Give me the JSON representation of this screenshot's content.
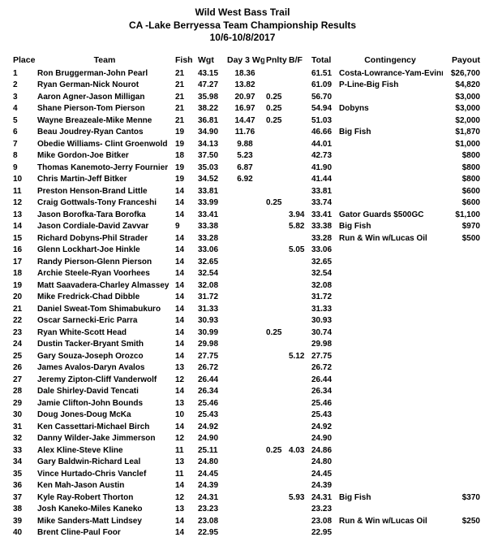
{
  "title_lines": [
    "Wild West Bass Trail",
    "CA -Lake Berryessa Team Championship Results",
    "10/6-10/8/2017"
  ],
  "columns": [
    "Place",
    "Team",
    "Fish",
    "Wgt",
    "Day 3 Wgt",
    "Pnlty",
    "B/F",
    "Total",
    "Contingency",
    "Payout"
  ],
  "rows": [
    {
      "place": "1",
      "team": "Ron Bruggerman-John Pearl",
      "fish": "21",
      "wgt": "43.15",
      "d3": "18.36",
      "pn": "",
      "bf": "",
      "tot": "61.51",
      "cont": "Costa-Lowrance-Yam-Evinrude",
      "pay": "$26,700"
    },
    {
      "place": "2",
      "team": "Ryan German-Nick Nourot",
      "fish": "21",
      "wgt": "47.27",
      "d3": "13.82",
      "pn": "",
      "bf": "",
      "tot": "61.09",
      "cont": "P-Line-Big Fish",
      "pay": "$4,820"
    },
    {
      "place": "3",
      "team": "Aaron Agner-Jason Milligan",
      "fish": "21",
      "wgt": "35.98",
      "d3": "20.97",
      "pn": "0.25",
      "bf": "",
      "tot": "56.70",
      "cont": "",
      "pay": "$3,000"
    },
    {
      "place": "4",
      "team": "Shane Pierson-Tom Pierson",
      "fish": "21",
      "wgt": "38.22",
      "d3": "16.97",
      "pn": "0.25",
      "bf": "",
      "tot": "54.94",
      "cont": "Dobyns",
      "pay": "$3,000"
    },
    {
      "place": "5",
      "team": "Wayne Breazeale-Mike Menne",
      "fish": "21",
      "wgt": "36.81",
      "d3": "14.47",
      "pn": "0.25",
      "bf": "",
      "tot": "51.03",
      "cont": "",
      "pay": "$2,000"
    },
    {
      "place": "6",
      "team": "Beau Joudrey-Ryan Cantos",
      "fish": "19",
      "wgt": "34.90",
      "d3": "11.76",
      "pn": "",
      "bf": "",
      "tot": "46.66",
      "cont": "Big Fish",
      "pay": "$1,870"
    },
    {
      "place": "7",
      "team": "Obedie Williams- Clint Groenwold",
      "fish": "19",
      "wgt": "34.13",
      "d3": "9.88",
      "pn": "",
      "bf": "",
      "tot": "44.01",
      "cont": "",
      "pay": "$1,000"
    },
    {
      "place": "8",
      "team": "Mike Gordon-Joe Bitker",
      "fish": "18",
      "wgt": "37.50",
      "d3": "5.23",
      "pn": "",
      "bf": "",
      "tot": "42.73",
      "cont": "",
      "pay": "$800"
    },
    {
      "place": "9",
      "team": "Thomas Kanemoto-Jerry Fournier",
      "fish": "19",
      "wgt": "35.03",
      "d3": "6.87",
      "pn": "",
      "bf": "",
      "tot": "41.90",
      "cont": "",
      "pay": "$800"
    },
    {
      "place": "10",
      "team": "Chris Martin-Jeff Bitker",
      "fish": "19",
      "wgt": "34.52",
      "d3": "6.92",
      "pn": "",
      "bf": "",
      "tot": "41.44",
      "cont": "",
      "pay": "$800"
    },
    {
      "place": "11",
      "team": "Preston Henson-Brand Little",
      "fish": "14",
      "wgt": "33.81",
      "d3": "",
      "pn": "",
      "bf": "",
      "tot": "33.81",
      "cont": "",
      "pay": "$600"
    },
    {
      "place": "12",
      "team": "Craig Gottwals-Tony Franceshi",
      "fish": "14",
      "wgt": "33.99",
      "d3": "",
      "pn": "0.25",
      "bf": "",
      "tot": "33.74",
      "cont": "",
      "pay": "$600"
    },
    {
      "place": "13",
      "team": "Jason Borofka-Tara Borofka",
      "fish": "14",
      "wgt": "33.41",
      "d3": "",
      "pn": "",
      "bf": "3.94",
      "tot": "33.41",
      "cont": "Gator Guards $500GC",
      "pay": "$1,100"
    },
    {
      "place": "14",
      "team": "Jason Cordiale-David Zavvar",
      "fish": "9",
      "wgt": "33.38",
      "d3": "",
      "pn": "",
      "bf": "5.82",
      "tot": "33.38",
      "cont": "Big Fish",
      "pay": "$970"
    },
    {
      "place": "15",
      "team": "Richard Dobyns-Phil Strader",
      "fish": "14",
      "wgt": "33.28",
      "d3": "",
      "pn": "",
      "bf": "",
      "tot": "33.28",
      "cont": "Run & Win w/Lucas Oil",
      "pay": "$500"
    },
    {
      "place": "16",
      "team": "Glenn Lockhart-Joe Hinkle",
      "fish": "14",
      "wgt": "33.06",
      "d3": "",
      "pn": "",
      "bf": "5.05",
      "tot": "33.06",
      "cont": "",
      "pay": ""
    },
    {
      "place": "17",
      "team": "Randy Pierson-Glenn Pierson",
      "fish": "14",
      "wgt": "32.65",
      "d3": "",
      "pn": "",
      "bf": "",
      "tot": "32.65",
      "cont": "",
      "pay": ""
    },
    {
      "place": "18",
      "team": "Archie Steele-Ryan Voorhees",
      "fish": "14",
      "wgt": "32.54",
      "d3": "",
      "pn": "",
      "bf": "",
      "tot": "32.54",
      "cont": "",
      "pay": ""
    },
    {
      "place": "19",
      "team": "Matt Saavadera-Charley Almassey",
      "fish": "14",
      "wgt": "32.08",
      "d3": "",
      "pn": "",
      "bf": "",
      "tot": "32.08",
      "cont": "",
      "pay": ""
    },
    {
      "place": "20",
      "team": "Mike Fredrick-Chad Dibble",
      "fish": "14",
      "wgt": "31.72",
      "d3": "",
      "pn": "",
      "bf": "",
      "tot": "31.72",
      "cont": "",
      "pay": ""
    },
    {
      "place": "21",
      "team": "Daniel Sweat-Tom Shimabukuro",
      "fish": "14",
      "wgt": "31.33",
      "d3": "",
      "pn": "",
      "bf": "",
      "tot": "31.33",
      "cont": "",
      "pay": ""
    },
    {
      "place": "22",
      "team": "Oscar Sarnecki-Eric Parra",
      "fish": "14",
      "wgt": "30.93",
      "d3": "",
      "pn": "",
      "bf": "",
      "tot": "30.93",
      "cont": "",
      "pay": ""
    },
    {
      "place": "23",
      "team": "Ryan White-Scott Head",
      "fish": "14",
      "wgt": "30.99",
      "d3": "",
      "pn": "0.25",
      "bf": "",
      "tot": "30.74",
      "cont": "",
      "pay": ""
    },
    {
      "place": "24",
      "team": "Dustin Tacker-Bryant Smith",
      "fish": "14",
      "wgt": "29.98",
      "d3": "",
      "pn": "",
      "bf": "",
      "tot": "29.98",
      "cont": "",
      "pay": ""
    },
    {
      "place": "25",
      "team": "Gary Souza-Joseph Orozco",
      "fish": "14",
      "wgt": "27.75",
      "d3": "",
      "pn": "",
      "bf": "5.12",
      "tot": "27.75",
      "cont": "",
      "pay": ""
    },
    {
      "place": "26",
      "team": "James Avalos-Daryn Avalos",
      "fish": "13",
      "wgt": "26.72",
      "d3": "",
      "pn": "",
      "bf": "",
      "tot": "26.72",
      "cont": "",
      "pay": ""
    },
    {
      "place": "27",
      "team": "Jeremy Zipton-Cliff Vanderwolf",
      "fish": "12",
      "wgt": "26.44",
      "d3": "",
      "pn": "",
      "bf": "",
      "tot": "26.44",
      "cont": "",
      "pay": ""
    },
    {
      "place": "28",
      "team": "Dale Shirley-David Tencati",
      "fish": "14",
      "wgt": "26.34",
      "d3": "",
      "pn": "",
      "bf": "",
      "tot": "26.34",
      "cont": "",
      "pay": ""
    },
    {
      "place": "29",
      "team": "Jamie Clifton-John Bounds",
      "fish": "13",
      "wgt": "25.46",
      "d3": "",
      "pn": "",
      "bf": "",
      "tot": "25.46",
      "cont": "",
      "pay": ""
    },
    {
      "place": "30",
      "team": "Doug Jones-Doug McKa",
      "fish": "10",
      "wgt": "25.43",
      "d3": "",
      "pn": "",
      "bf": "",
      "tot": "25.43",
      "cont": "",
      "pay": ""
    },
    {
      "place": "31",
      "team": "Ken Cassettari-Michael Birch",
      "fish": "14",
      "wgt": "24.92",
      "d3": "",
      "pn": "",
      "bf": "",
      "tot": "24.92",
      "cont": "",
      "pay": ""
    },
    {
      "place": "32",
      "team": "Danny Wilder-Jake Jimmerson",
      "fish": "12",
      "wgt": "24.90",
      "d3": "",
      "pn": "",
      "bf": "",
      "tot": "24.90",
      "cont": "",
      "pay": ""
    },
    {
      "place": "33",
      "team": "Alex Kline-Steve Kline",
      "fish": "11",
      "wgt": "25.11",
      "d3": "",
      "pn": "0.25",
      "bf": "4.03",
      "tot": "24.86",
      "cont": "",
      "pay": ""
    },
    {
      "place": "34",
      "team": "Gary Baldwin-Richard Leal",
      "fish": "13",
      "wgt": "24.80",
      "d3": "",
      "pn": "",
      "bf": "",
      "tot": "24.80",
      "cont": "",
      "pay": ""
    },
    {
      "place": "35",
      "team": "Vince Hurtado-Chris Vanclef",
      "fish": "11",
      "wgt": "24.45",
      "d3": "",
      "pn": "",
      "bf": "",
      "tot": "24.45",
      "cont": "",
      "pay": ""
    },
    {
      "place": "36",
      "team": "Ken Mah-Jason Austin",
      "fish": "14",
      "wgt": "24.39",
      "d3": "",
      "pn": "",
      "bf": "",
      "tot": "24.39",
      "cont": "",
      "pay": ""
    },
    {
      "place": "37",
      "team": "Kyle Ray-Robert Thorton",
      "fish": "12",
      "wgt": "24.31",
      "d3": "",
      "pn": "",
      "bf": "5.93",
      "tot": "24.31",
      "cont": "Big Fish",
      "pay": "$370"
    },
    {
      "place": "38",
      "team": "Josh Kaneko-Miles Kaneko",
      "fish": "13",
      "wgt": "23.23",
      "d3": "",
      "pn": "",
      "bf": "",
      "tot": "23.23",
      "cont": "",
      "pay": ""
    },
    {
      "place": "39",
      "team": "Mike Sanders-Matt Lindsey",
      "fish": "14",
      "wgt": "23.08",
      "d3": "",
      "pn": "",
      "bf": "",
      "tot": "23.08",
      "cont": "Run & Win w/Lucas Oil",
      "pay": "$250"
    },
    {
      "place": "40",
      "team": "Brent Cline-Paul Foor",
      "fish": "14",
      "wgt": "22.95",
      "d3": "",
      "pn": "",
      "bf": "",
      "tot": "22.95",
      "cont": "",
      "pay": ""
    }
  ]
}
